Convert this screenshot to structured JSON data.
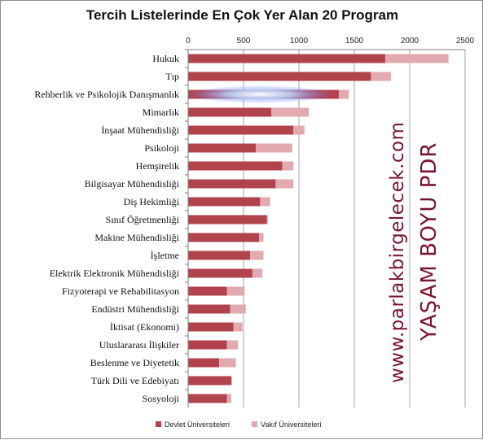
{
  "chart_data": {
    "type": "bar",
    "orientation": "horizontal",
    "stacked": true,
    "title": "Tercih Listelerinde En Çok Yer Alan 20 Program",
    "categories": [
      "Hukuk",
      "Tıp",
      "Rehberlik ve Psikolojik Danışmanlık",
      "Mimarlık",
      "İnşaat Mühendisliği",
      "Psikoloji",
      "Hemşirelik",
      "Bilgisayar Mühendisliği",
      "Diş Hekimliği",
      "Sınıf Öğretmenliği",
      "Makine Mühendisliği",
      "İşletme",
      "Elektrik Elektronik Mühendisliği",
      "Fizyoterapi ve Rehabilitasyon",
      "Endüstri Mühendisliği",
      "İktisat (Ekonomi)",
      "Uluslararası İlişkiler",
      "Beslenme ve Diyetetik",
      "Türk Dili ve Edebiyatı",
      "Sosyoloji"
    ],
    "series": [
      {
        "name": "Devlet Üniversiteleri",
        "color": "#b0434c",
        "values": [
          1780,
          1650,
          1360,
          750,
          950,
          610,
          850,
          790,
          650,
          710,
          640,
          560,
          580,
          350,
          380,
          410,
          350,
          280,
          390,
          350
        ]
      },
      {
        "name": "Vakıf Üniversiteleri",
        "color": "#e2a9ae",
        "values": [
          570,
          180,
          90,
          340,
          100,
          330,
          100,
          160,
          90,
          10,
          40,
          120,
          90,
          160,
          140,
          80,
          100,
          150,
          5,
          40
        ]
      }
    ],
    "x_ticks": [
      "0",
      "500",
      "1000",
      "1500",
      "2000",
      "2500"
    ],
    "xlim": [
      0,
      2500
    ],
    "x_axis_position": "top",
    "grid": true,
    "legend_position": "bottom"
  },
  "watermarks": {
    "site": "www.parlakbirgelecek.com",
    "slogan": "YAŞAM BOYU PDR"
  }
}
